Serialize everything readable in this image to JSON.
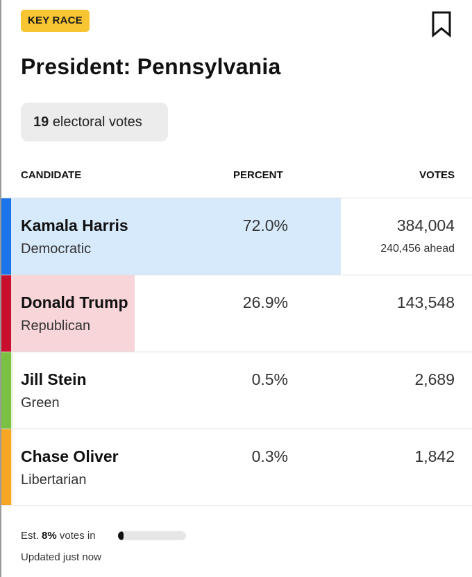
{
  "badge": "KEY RACE",
  "title": "President: Pennsylvania",
  "electoral": {
    "count": "19",
    "label": "electoral votes"
  },
  "table": {
    "headers": {
      "candidate": "CANDIDATE",
      "percent": "PERCENT",
      "votes": "VOTES"
    },
    "rows": [
      {
        "name": "Kamala Harris",
        "party": "Democratic",
        "percent": "72.0%",
        "votes": "384,004",
        "ahead": "240,456 ahead",
        "color": "#1a73e8",
        "fill_color": "#d6eafb",
        "share": 0.72
      },
      {
        "name": "Donald Trump",
        "party": "Republican",
        "percent": "26.9%",
        "votes": "143,548",
        "ahead": "",
        "color": "#c8102e",
        "fill_color": "#f7d5d8",
        "share": 0.269
      },
      {
        "name": "Jill Stein",
        "party": "Green",
        "percent": "0.5%",
        "votes": "2,689",
        "ahead": "",
        "color": "#7ac143",
        "fill_color": "#e6f4da",
        "share": 0.005
      },
      {
        "name": "Chase Oliver",
        "party": "Libertarian",
        "percent": "0.3%",
        "votes": "1,842",
        "ahead": "",
        "color": "#f5a623",
        "fill_color": "#fdebd0",
        "share": 0.003
      }
    ]
  },
  "footer": {
    "est_prefix": "Est.",
    "est_value": "8%",
    "est_suffix": "votes in",
    "progress": 0.08,
    "updated": "Updated just now"
  }
}
